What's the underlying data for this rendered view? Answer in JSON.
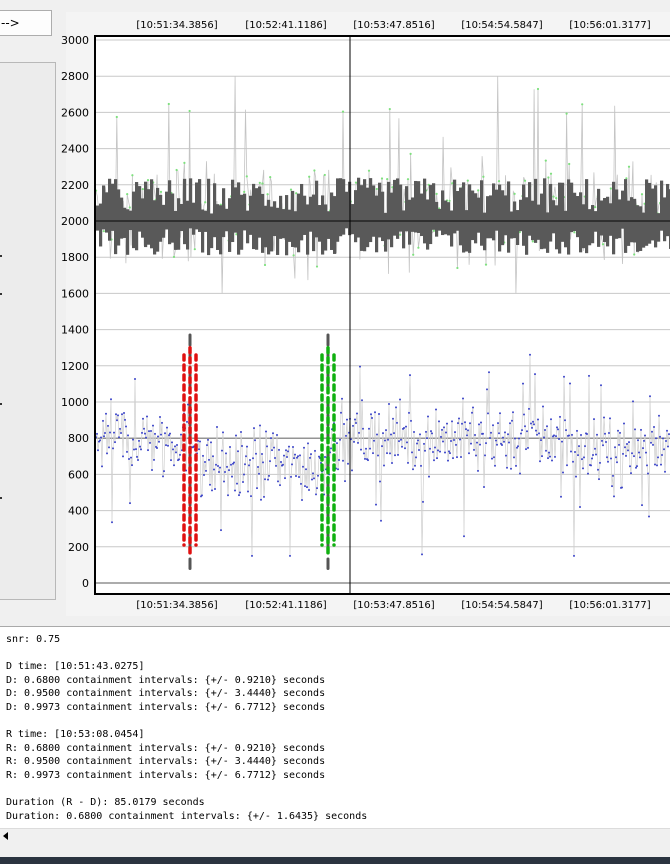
{
  "toolbar": {
    "arrow_label": "-->"
  },
  "colors": {
    "reference_trace": "#7ee07e",
    "signal_band": "#595959",
    "noise_trace": "#3b44c8",
    "d_marker": "#e01010",
    "r_marker": "#10b010",
    "cursor_line": "#000000"
  },
  "chart_data": {
    "type": "scatter",
    "title": "",
    "xlabel": "",
    "ylabel": "",
    "ylim": [
      0,
      3000
    ],
    "y_ticks": [
      "3000",
      "2800",
      "2600",
      "2400",
      "2200",
      "2000",
      "1800",
      "1600",
      "1400",
      "1200",
      "1000",
      "800",
      "600",
      "400",
      "200",
      "0"
    ],
    "x_tick_labels": [
      "[10:51:34.3856]",
      "[10:52:41.1186]",
      "[10:53:47.8516]",
      "[10:54:54.5847]",
      "[10:56:01.3177]"
    ],
    "grid": true,
    "series": [
      {
        "center": 2050,
        "spread_low": 1600,
        "spread_high": 2700
      },
      {
        "center": 2000,
        "band_low": 1850,
        "band_high": 2200
      },
      {
        "center": 800,
        "spread_low": 150,
        "spread_high": 1280
      }
    ],
    "markers": [
      {
        "time": "[10:51:43.0275]",
        "y_low": 150,
        "y_high": 1300
      },
      {
        "time": "[10:53:08.0454]",
        "y_low": 150,
        "y_high": 1300
      }
    ],
    "cursor_time": "[10:53:47.8516]"
  },
  "log": {
    "lines": [
      "snr: 0.75",
      "",
      "D time: [10:51:43.0275]",
      "D: 0.6800 containment intervals: {+/- 0.9210} seconds",
      "D: 0.9500 containment intervals: {+/- 3.4440} seconds",
      "D: 0.9973 containment intervals: {+/- 6.7712} seconds",
      "",
      "R time: [10:53:08.0454]",
      "R: 0.6800 containment intervals: {+/- 0.9210} seconds",
      "R: 0.9500 containment intervals: {+/- 3.4440} seconds",
      "R: 0.9973 containment intervals: {+/- 6.7712} seconds",
      "",
      "Duration (R - D): 85.0179 seconds",
      "Duration: 0.6800 containment intervals: {+/- 1.6435} seconds"
    ]
  }
}
